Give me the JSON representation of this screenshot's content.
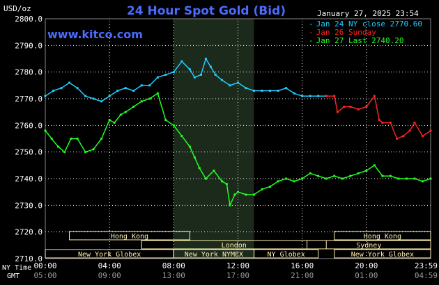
{
  "header": {
    "units": "USD/oz",
    "title": "24 Hour Spot Gold (Bid)",
    "timestamp": "January 27, 2025 23:54",
    "watermark": "www.kitco.com"
  },
  "colors": {
    "background": "#000000",
    "grid": "#ffffff",
    "title": "#4a6cff",
    "shade": "#1c2a1c",
    "series_jan24": "#22ccff",
    "series_jan26": "#ff2020",
    "series_jan27": "#22ff22",
    "session_box": "#fff1b0"
  },
  "row_labels": {
    "ny": "NY Time",
    "gmt": "GMT"
  },
  "sessions": [
    {
      "name": "Hong Kong",
      "row": 0,
      "start": 1.5,
      "end": 9.0
    },
    {
      "name": "Hong Kong",
      "row": 0,
      "start": 18.0,
      "end": 24.0
    },
    {
      "name": "London",
      "row": 1,
      "start": 6.0,
      "end": 17.5
    },
    {
      "name": "Sydney",
      "row": 1,
      "start": 16.3,
      "end": 24.0
    },
    {
      "name": "New York Globex",
      "row": 2,
      "start": 0.0,
      "end": 8.0
    },
    {
      "name": "New York NYMEX",
      "row": 2,
      "start": 8.0,
      "end": 13.0
    },
    {
      "name": "NY Globex",
      "row": 2,
      "start": 13.0,
      "end": 17.0
    },
    {
      "name": "New York Globex",
      "row": 2,
      "start": 18.0,
      "end": 24.0
    }
  ],
  "chart_data": {
    "type": "line",
    "ylim": [
      2710,
      2800
    ],
    "xlim": [
      0,
      24
    ],
    "yticks": [
      "2800.0",
      "2790.0",
      "2780.0",
      "2770.0",
      "2760.0",
      "2750.0",
      "2740.0",
      "2730.0",
      "2720.0",
      "2710.0"
    ],
    "xticks_ny": [
      "00:00",
      "04:00",
      "08:00",
      "12:00",
      "16:00",
      "20:00",
      "23:59"
    ],
    "xticks_gmt": [
      "05:00",
      "09:00",
      "13:00",
      "17:00",
      "21:00",
      "01:00",
      "04:59"
    ],
    "shaded_range": [
      8.0,
      13.0
    ],
    "legend": [
      {
        "label": "Jan 24 NY close 2770.60",
        "series": 0
      },
      {
        "label": "Jan 26 Sunday",
        "series": 1
      },
      {
        "label": "Jan 27 Last 2740.20",
        "series": 2
      }
    ],
    "series": [
      {
        "name": "Jan 24 NY close 2770.60",
        "x": [
          0,
          0.5,
          1,
          1.5,
          2,
          2.5,
          3,
          3.5,
          4,
          4.5,
          5,
          5.5,
          6,
          6.5,
          7,
          7.5,
          8,
          8.5,
          9,
          9.3,
          9.7,
          10,
          10.3,
          10.6,
          11,
          11.5,
          12,
          12.5,
          13,
          13.5,
          14,
          14.5,
          15,
          15.5,
          16,
          16.5,
          17,
          17.5
        ],
        "y": [
          2771,
          2773,
          2774,
          2776,
          2774,
          2771,
          2770,
          2769,
          2771,
          2773,
          2774,
          2773,
          2775,
          2775,
          2778,
          2779,
          2780,
          2784,
          2781,
          2778,
          2779,
          2785,
          2782,
          2779,
          2777,
          2775,
          2776,
          2774,
          2773,
          2773,
          2773,
          2773,
          2774,
          2772,
          2771,
          2771,
          2771,
          2771
        ]
      },
      {
        "name": "Jan 26 Sunday",
        "x": [
          17.5,
          18,
          18.2,
          18.6,
          19,
          19.5,
          20,
          20.5,
          20.8,
          21,
          21.5,
          21.9,
          22.3,
          22.7,
          23,
          23.5,
          24
        ],
        "y": [
          2771,
          2771,
          2765,
          2767,
          2767,
          2766,
          2767,
          2771,
          2762,
          2761,
          2761,
          2755,
          2756,
          2758,
          2761,
          2756,
          2758
        ]
      },
      {
        "name": "Jan 27 Last 2740.20",
        "x": [
          0,
          0.4,
          0.8,
          1.2,
          1.6,
          2,
          2.5,
          3,
          3.5,
          4,
          4.3,
          4.7,
          5,
          5.5,
          6,
          6.5,
          7,
          7.5,
          8,
          8.5,
          9,
          9.3,
          9.6,
          10,
          10.5,
          11,
          11.3,
          11.5,
          11.8,
          12,
          12.5,
          13,
          13.5,
          14,
          14.5,
          15,
          15.5,
          16,
          16.5,
          17,
          17.5,
          18,
          18.5,
          19,
          19.5,
          20,
          20.5,
          21,
          21.5,
          22,
          22.5,
          23,
          23.5,
          24
        ],
        "y": [
          2758,
          2755,
          2752,
          2750,
          2755,
          2755,
          2750,
          2751,
          2755,
          2762,
          2761,
          2764,
          2765,
          2767,
          2769,
          2770,
          2772,
          2762,
          2760,
          2756,
          2752,
          2748,
          2744,
          2740,
          2743,
          2739,
          2738,
          2730,
          2734,
          2735,
          2734,
          2734,
          2736,
          2737,
          2739,
          2740,
          2739,
          2740,
          2742,
          2741,
          2740,
          2741,
          2740,
          2741,
          2742,
          2743,
          2745,
          2741,
          2741,
          2740,
          2740,
          2740,
          2739,
          2740
        ]
      }
    ]
  }
}
